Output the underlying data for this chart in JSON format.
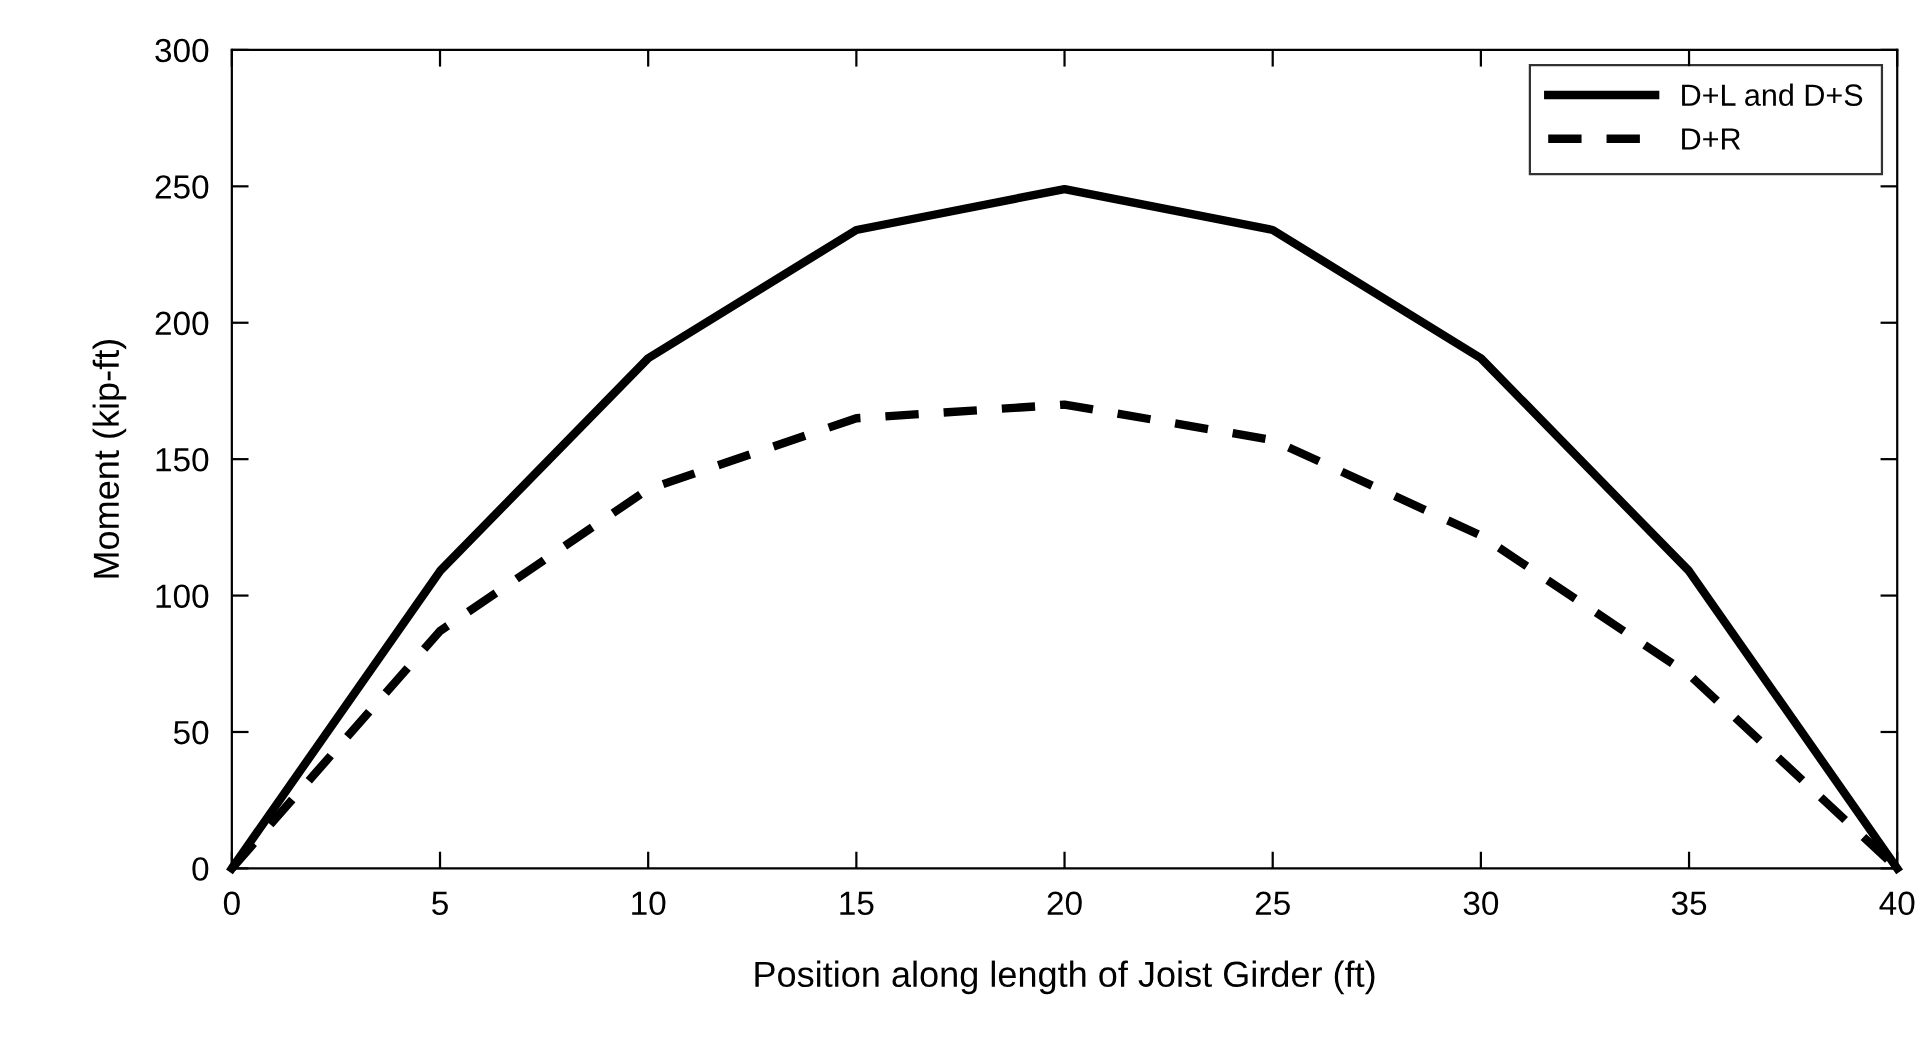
{
  "chart_data": {
    "type": "line",
    "xlabel": "Position along length of Joist Girder (ft)",
    "ylabel": "Moment (kip-ft)",
    "x": [
      0,
      5,
      10,
      15,
      20,
      25,
      30,
      35,
      40
    ],
    "series": [
      {
        "name": "D+L and D+S",
        "color": "#000000",
        "line_style": "solid",
        "values": [
          0,
          109,
          187,
          234,
          249,
          234,
          187,
          109,
          0
        ]
      },
      {
        "name": "D+R",
        "color": "#000000",
        "line_style": "dashed",
        "values": [
          0,
          87,
          139,
          165,
          170,
          157,
          122,
          71,
          0
        ]
      }
    ],
    "xlim": [
      0,
      40
    ],
    "ylim": [
      0,
      300
    ],
    "xticks": [
      0,
      5,
      10,
      15,
      20,
      25,
      30,
      35,
      40
    ],
    "yticks": [
      0,
      50,
      100,
      150,
      200,
      250,
      300
    ],
    "grid": false,
    "legend": "top right",
    "marker": "none"
  }
}
